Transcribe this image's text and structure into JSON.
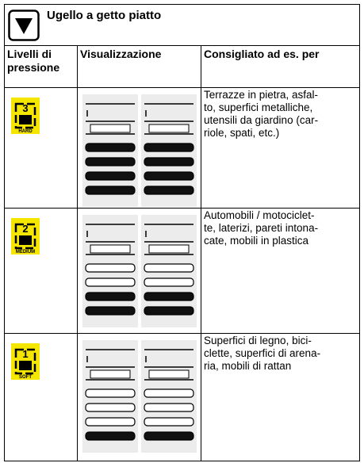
{
  "header": {
    "title": "Ugello a getto piatto"
  },
  "table": {
    "columns": [
      "Livelli di pressione",
      "Visualizzazione",
      "Consigliato ad es. per"
    ],
    "rows": [
      {
        "level": "3",
        "level_label": "HARD",
        "text": [
          "Terrazze in pietra, asfal-",
          "to, superfici metalliche,",
          "utensili da giardino (car-",
          "riole, spati, etc.)"
        ]
      },
      {
        "level": "2",
        "level_label": "MEDIUM",
        "text": [
          "Automobili / motociclet-",
          "te, laterizi, pareti intona-",
          "cate, mobili in plastica"
        ]
      },
      {
        "level": "1",
        "level_label": "SOFT",
        "text": [
          "Superfici di legno, bici-",
          "clette, superfici di arena-",
          "ria, mobili di rattan"
        ]
      }
    ]
  }
}
